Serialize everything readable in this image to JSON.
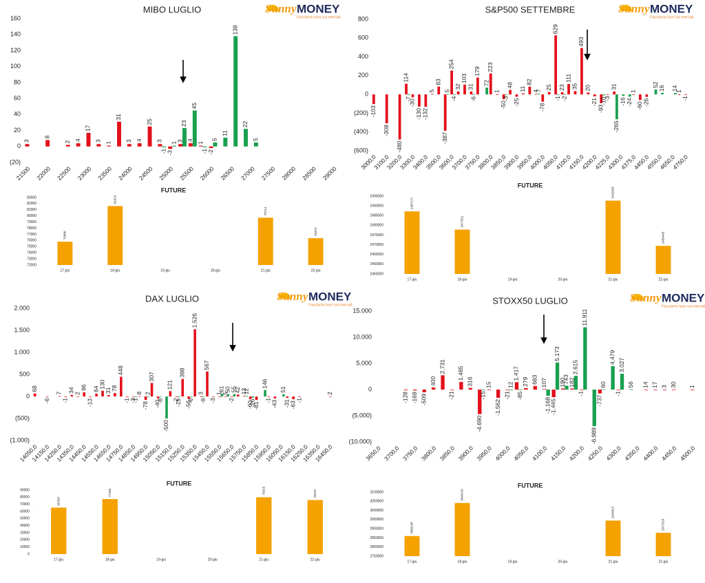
{
  "logo": {
    "brand": "Sunny",
    "name": "MONEY",
    "tagline": "Facciamo luce sui mercati"
  },
  "chart_data": [
    {
      "type": "bar",
      "title": "MIBO LUGLIO",
      "categories": [
        "21500",
        null,
        "22000",
        null,
        "22500",
        null,
        "23000",
        null,
        "23500",
        null,
        "24000",
        null,
        "24500",
        null,
        "25000",
        null,
        "25500",
        null,
        "26000",
        null,
        "26500",
        null,
        "27000",
        null,
        "27500",
        null,
        "28000",
        null,
        "28500",
        null,
        "29000"
      ],
      "series": [
        {
          "color": "#e3101a",
          "values": [
            3,
            null,
            8,
            null,
            2,
            4,
            17,
            3,
            1,
            31,
            3,
            4,
            25,
            3,
            -3,
            3,
            4,
            1,
            -2,
            null,
            null,
            null,
            null,
            null,
            null,
            null,
            null,
            null,
            null,
            null,
            null
          ]
        },
        {
          "color": "#19a050",
          "values": [
            null,
            null,
            null,
            null,
            null,
            null,
            null,
            null,
            null,
            null,
            null,
            null,
            null,
            -1,
            1,
            23,
            45,
            -1,
            5,
            11,
            138,
            22,
            5,
            null,
            null,
            null,
            null,
            null,
            null,
            null,
            null
          ]
        }
      ],
      "ylim": [
        -20,
        160
      ],
      "yticks": [
        {
          "value": -20,
          "label": "(20)"
        },
        0,
        20,
        40,
        60,
        80,
        100,
        120,
        140,
        160
      ],
      "grid": false
    },
    {
      "type": "bar",
      "title": "FUTURE",
      "categories": [
        "17-giu",
        "18-giu",
        "19-giu",
        "20-giu",
        "21-giu",
        "22-giu"
      ],
      "values": [
        75800,
        81613,
        null,
        null,
        79714,
        76373
      ],
      "color": "#f5a100",
      "ylim": [
        72000,
        83000
      ],
      "yticks": [
        72000,
        73000,
        74000,
        75000,
        76000,
        77000,
        78000,
        79000,
        80000,
        81000,
        82000,
        83000
      ],
      "grid": false
    },
    {
      "type": "bar",
      "title": "S&P500 SETTEMBRE",
      "categories": [
        "3000,0",
        null,
        "3100,0",
        null,
        "3200,0",
        null,
        "3300,0",
        null,
        "3400,0",
        null,
        "3500,0",
        null,
        "3600,0",
        null,
        "3700,0",
        null,
        "3750,0",
        null,
        "3800,0",
        null,
        "3850,0",
        null,
        "3900,0",
        null,
        "3950,0",
        null,
        "4000,0",
        null,
        "4050,0",
        null,
        "4100,0",
        null,
        "4150,0",
        null,
        "4200,0",
        null,
        "4225,0",
        null,
        "4300,0",
        null,
        "4375,0",
        null,
        "4450,0",
        null,
        "4550,0",
        null,
        "4650,0",
        null,
        "4750,0",
        null
      ],
      "series": [
        {
          "color": "#e3101a",
          "values": [
            -103,
            null,
            -308,
            null,
            -480,
            114,
            -30,
            -130,
            -132,
            5,
            83,
            -387,
            254,
            32,
            103,
            31,
            179,
            null,
            223,
            1,
            -50,
            48,
            -25,
            11,
            82,
            4,
            -78,
            25,
            629,
            23,
            111,
            35,
            493,
            20,
            -21,
            -93,
            -3,
            31,
            null,
            null,
            1,
            -60,
            -26,
            null,
            null,
            null,
            null,
            1,
            -1,
            null
          ]
        },
        {
          "color": "#19a050",
          "values": [
            null,
            null,
            null,
            null,
            null,
            -7,
            null,
            null,
            null,
            null,
            null,
            5,
            -4,
            null,
            null,
            -6,
            null,
            72,
            null,
            null,
            -3,
            null,
            null,
            null,
            null,
            7,
            null,
            null,
            -1,
            -2,
            null,
            null,
            null,
            null,
            null,
            -10,
            null,
            -265,
            -16,
            -24,
            null,
            null,
            null,
            52,
            16,
            null,
            14,
            null,
            null,
            null
          ]
        }
      ],
      "ylim": [
        -600,
        800
      ],
      "yticks": [
        {
          "value": -600,
          "label": "(600)"
        },
        {
          "value": -400,
          "label": "(400)"
        },
        {
          "value": -200,
          "label": "(200)"
        },
        0,
        200,
        400,
        600,
        800
      ],
      "grid": false
    },
    {
      "type": "bar",
      "title": "FUTURE",
      "categories": [
        "17-giu",
        "18-giu",
        "19-giu",
        "20-giu",
        "21-giu",
        "22-giu"
      ],
      "values": [
        2487171,
        2477811,
        null,
        null,
        2492695,
        2469443
      ],
      "color": "#f5a100",
      "ylim": [
        2455000,
        2495000
      ],
      "yticks": [
        2455000,
        2460000,
        2465000,
        2470000,
        2475000,
        2480000,
        2485000,
        2490000,
        2495000
      ],
      "grid": false
    },
    {
      "type": "bar",
      "title": "DAX LUGLIO",
      "categories": [
        "14050,0",
        null,
        "14150,0",
        null,
        "14250,0",
        null,
        "14350,0",
        null,
        "14450,0",
        null,
        "14550,0",
        null,
        "14650,0",
        null,
        "14750,0",
        null,
        "14850,0",
        null,
        "14950,0",
        null,
        "15050,0",
        null,
        "15150,0",
        null,
        "15250,0",
        null,
        "15350,0",
        null,
        "15450,0",
        null,
        "15550,0",
        null,
        "15650,0",
        null,
        "15750,0",
        null,
        "15850,0",
        null,
        "15950,0",
        null,
        "16050,0",
        null,
        "16150,0",
        null,
        "16250,0",
        null,
        "16350,0",
        null,
        "16450,0",
        null
      ],
      "series": [
        {
          "color": "#e3101a",
          "values": [
            68,
            null,
            -6,
            null,
            7,
            -1,
            34,
            2,
            96,
            -13,
            64,
            130,
            31,
            78,
            448,
            -1,
            -3,
            8,
            -78,
            307,
            -40,
            null,
            121,
            -2,
            398,
            -56,
            1526,
            3,
            567,
            -3,
            1,
            5,
            -2,
            42,
            12,
            -60,
            -81,
            null,
            -1,
            -43,
            null,
            -31,
            -63,
            -1,
            null,
            null,
            null,
            null,
            2,
            null
          ],
          "value_labels": [
            "68",
            null,
            "-6",
            null,
            "7",
            "-1",
            "34",
            "2",
            "96",
            "-13",
            "64",
            "130",
            "31",
            "78",
            "448",
            "-1",
            "-3",
            "8",
            "-78",
            "307",
            "-40",
            null,
            "121",
            "-2",
            "398",
            "-56",
            "1.526",
            "3",
            "567",
            "-3",
            "1",
            "5",
            "-2",
            "42",
            "12",
            "-60",
            "-81",
            null,
            "-1",
            "-43",
            null,
            "-31",
            "-63",
            "-1",
            null,
            null,
            null,
            null,
            "2",
            null
          ]
        },
        {
          "color": "#19a050",
          "values": [
            null,
            null,
            null,
            null,
            null,
            null,
            null,
            null,
            null,
            null,
            null,
            null,
            null,
            null,
            null,
            null,
            -1,
            null,
            2,
            null,
            -8,
            -500,
            null,
            -15,
            null,
            -6,
            null,
            -9,
            null,
            null,
            61,
            50,
            55,
            null,
            12,
            -26,
            null,
            146,
            null,
            null,
            51,
            null,
            null,
            null,
            null,
            null,
            null,
            null,
            null,
            null
          ]
        }
      ],
      "ylim": [
        -1000,
        2000
      ],
      "yticks": [
        {
          "value": -1000,
          "label": "(1.000)"
        },
        {
          "value": -500,
          "label": "(500)"
        },
        0,
        500,
        {
          "value": 1000,
          "label": "1.000"
        },
        {
          "value": 1500,
          "label": "1.500"
        },
        {
          "value": 2000,
          "label": "2.000"
        }
      ],
      "grid": false
    },
    {
      "type": "bar",
      "title": "FUTURE",
      "categories": [
        "17-giu",
        "18-giu",
        "19-giu",
        "20-giu",
        "21-giu",
        "22-giu"
      ],
      "values": [
        65320,
        77355,
        null,
        null,
        79915,
        75975
      ],
      "color": "#f5a100",
      "ylim": [
        0,
        90000
      ],
      "yticks": [
        0,
        10000,
        20000,
        30000,
        40000,
        50000,
        60000,
        70000,
        80000,
        90000
      ],
      "grid": false
    },
    {
      "type": "bar",
      "title": "STOXX50 LUGLIO",
      "categories": [
        "3650,0",
        null,
        "3700,0",
        null,
        "3750,0",
        null,
        "3800,0",
        null,
        "3850,0",
        null,
        "3900,0",
        null,
        "3950,0",
        null,
        "4000,0",
        null,
        "4050,0",
        null,
        "4100,0",
        null,
        "4150,0",
        null,
        "4200,0",
        null,
        "4250,0",
        null,
        "4300,0",
        null,
        "4350,0",
        null,
        "4400,0",
        null,
        "4450,0",
        null,
        "4500,0"
      ],
      "series": [
        {
          "color": "#e3101a",
          "values": [
            null,
            null,
            null,
            -128,
            -169,
            -509,
            400,
            2731,
            -21,
            1465,
            316,
            -4690,
            15,
            -1562,
            -21,
            1417,
            279,
            683,
            107,
            -1445,
            190,
            182,
            -1,
            null,
            -737,
            null,
            -1,
            null,
            null,
            14,
            17,
            3,
            30,
            null,
            1
          ],
          "value_labels": [
            null,
            null,
            null,
            "-128",
            "-169",
            "-509",
            "400",
            "2.731",
            "-21",
            "1.465",
            "316",
            "-4.690",
            "15",
            "-1.562",
            "-21",
            "1.417",
            "279",
            "683",
            "107",
            "-1.445",
            "190",
            "182",
            "-1",
            null,
            "-737",
            null,
            "-1",
            null,
            null,
            "14",
            "17",
            "3",
            "30",
            null,
            "1"
          ]
        },
        {
          "color": "#19a050",
          "values": [
            null,
            null,
            null,
            null,
            null,
            null,
            null,
            null,
            null,
            null,
            null,
            -15,
            null,
            null,
            12,
            -85,
            null,
            null,
            -1168,
            5173,
            743,
            2615,
            11911,
            -6989,
            60,
            4479,
            3027,
            56,
            null,
            null,
            null,
            null,
            null,
            null,
            null
          ],
          "value_labels": [
            null,
            null,
            null,
            null,
            null,
            null,
            null,
            null,
            null,
            null,
            null,
            "-15",
            null,
            null,
            "12",
            "-85",
            null,
            null,
            "-1.168",
            "5.173",
            "743",
            "2.615",
            "11.911",
            "-6.989",
            "60",
            "4.479",
            "3.027",
            "56",
            null,
            null,
            null,
            null,
            null,
            null,
            null
          ]
        }
      ],
      "ylim": [
        -10000,
        15000
      ],
      "yticks": [
        {
          "value": -10000,
          "label": "(10.000)"
        },
        {
          "value": -5000,
          "label": "(5.000)"
        },
        0,
        {
          "value": 5000,
          "label": "5.000"
        },
        {
          "value": 10000,
          "label": "10.000"
        },
        {
          "value": 15000,
          "label": "15.000"
        }
      ],
      "grid": false
    },
    {
      "type": "bar",
      "title": "FUTURE",
      "categories": [
        "17-giu",
        "18-giu",
        "19-giu",
        "20-giu",
        "21-giu",
        "22-giu"
      ],
      "values": [
        2860198,
        3040729,
        null,
        null,
        2944622,
        2877518
      ],
      "color": "#f5a100",
      "ylim": [
        2750000,
        3100000
      ],
      "yticks": [
        2750000,
        2800000,
        2850000,
        2900000,
        2950000,
        3000000,
        3050000,
        3100000
      ],
      "grid": false
    }
  ]
}
